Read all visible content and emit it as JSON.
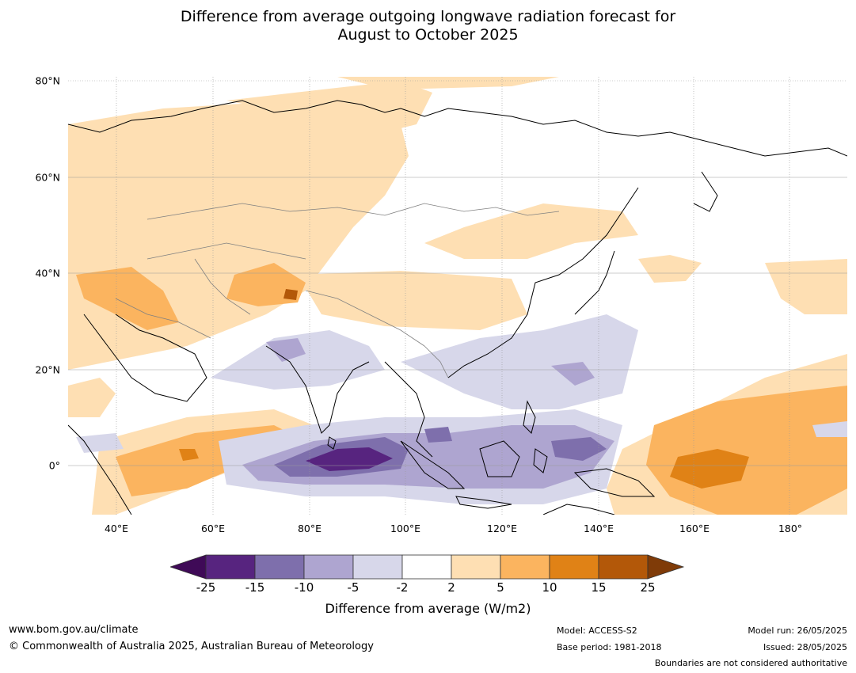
{
  "title_line1": "Difference from average outgoing longwave radiation forecast for",
  "title_line2": "August to October 2025",
  "lat_labels": [
    "80°N",
    "60°N",
    "40°N",
    "20°N",
    "0°"
  ],
  "lon_labels": [
    "40°E",
    "60°E",
    "80°E",
    "100°E",
    "120°E",
    "140°E",
    "160°E",
    "180°"
  ],
  "colorbar": {
    "ticks": [
      "-25",
      "-15",
      "-10",
      "-5",
      "-2",
      "2",
      "5",
      "10",
      "15",
      "25"
    ],
    "colors": [
      "#3f0a57",
      "#57247f",
      "#7e6fac",
      "#aea5d0",
      "#d7d7ea",
      "#ffffff",
      "#fedfb3",
      "#fbb45f",
      "#e08216",
      "#b35809",
      "#7f3b08"
    ],
    "label": "Difference from average (W/m2)"
  },
  "footer": {
    "website": "www.bom.gov.au/climate",
    "copyright": "© Commonwealth of Australia 2025, Australian Bureau of Meteorology",
    "model": "Model: ACCESS-S2",
    "base_period": "Base period: 1981-2018",
    "model_run": "Model run: 26/05/2025",
    "issued": "Issued: 28/05/2025",
    "boundaries": "Boundaries are not considered authoritative"
  }
}
